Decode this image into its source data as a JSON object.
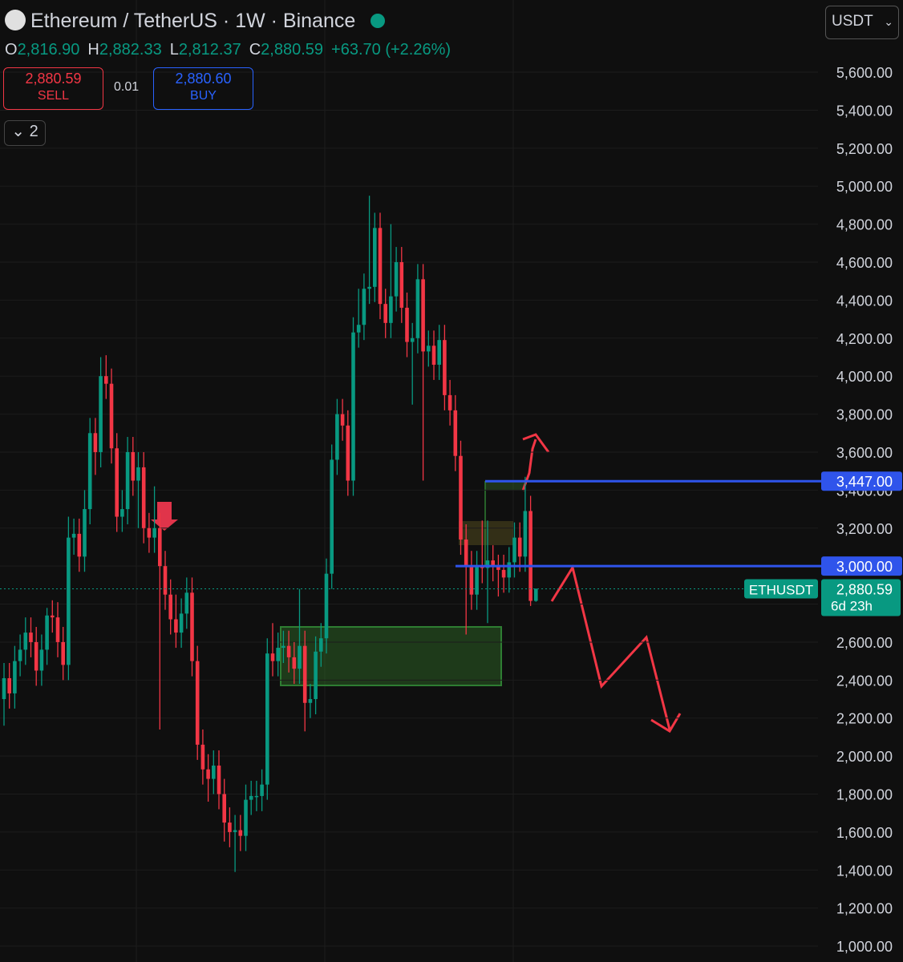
{
  "header": {
    "title": "Ethereum / TetherUS · 1W · Binance",
    "currency": "USDT",
    "ohlc": [
      {
        "key": "O",
        "value": "2,816.90"
      },
      {
        "key": "H",
        "value": "2,882.33"
      },
      {
        "key": "L",
        "value": "2,812.37"
      },
      {
        "key": "C",
        "value": "2,880.59"
      }
    ],
    "change": "+63.70 (+2.26%)",
    "sell": {
      "price": "2,880.59",
      "label": "SELL"
    },
    "spread": "0.01",
    "buy": {
      "price": "2,880.60",
      "label": "BUY"
    },
    "indicators": "2"
  },
  "chart_data": {
    "type": "candlestick",
    "up_color": "#089981",
    "down_color": "#f23645",
    "ylim": [
      916,
      5980
    ],
    "yticks": [
      {
        "value": 1000,
        "label": "1,000.00"
      },
      {
        "value": 1200,
        "label": "1,200.00"
      },
      {
        "value": 1400,
        "label": "1,400.00"
      },
      {
        "value": 1600,
        "label": "1,600.00"
      },
      {
        "value": 1800,
        "label": "1,800.00"
      },
      {
        "value": 2000,
        "label": "2,000.00"
      },
      {
        "value": 2200,
        "label": "2,200.00"
      },
      {
        "value": 2400,
        "label": "2,400.00"
      },
      {
        "value": 2600,
        "label": "2,600.00"
      },
      {
        "value": 2800,
        "label": "2,800.00"
      },
      {
        "value": 3000,
        "label": "3,000.00"
      },
      {
        "value": 3200,
        "label": "3,200.00"
      },
      {
        "value": 3400,
        "label": "3,400.00"
      },
      {
        "value": 3600,
        "label": "3,600.00"
      },
      {
        "value": 3800,
        "label": "3,800.00"
      },
      {
        "value": 4000,
        "label": "4,000.00"
      },
      {
        "value": 4200,
        "label": "4,200.00"
      },
      {
        "value": 4400,
        "label": "4,400.00"
      },
      {
        "value": 4600,
        "label": "4,600.00"
      },
      {
        "value": 4800,
        "label": "4,800.00"
      },
      {
        "value": 5000,
        "label": "5,000.00"
      },
      {
        "value": 5200,
        "label": "5,200.00"
      },
      {
        "value": 5400,
        "label": "5,400.00"
      },
      {
        "value": 5600,
        "label": "5,600.00"
      }
    ],
    "grid": true,
    "open": [
      2300,
      2410,
      2330,
      2500,
      2560,
      2650,
      2600,
      2450,
      2560,
      2740,
      2730,
      2600,
      2480,
      3150,
      3170,
      3050,
      3300,
      3700,
      3600,
      4000,
      3960,
      3620,
      3260,
      3300,
      3600,
      3450,
      3520,
      3200,
      3150,
      3200,
      3000,
      2850,
      2720,
      2650,
      2750,
      2860,
      2500,
      2060,
      1930,
      1880,
      1950,
      1800,
      1650,
      1600,
      1610,
      1580,
      1770,
      1790,
      1790,
      1850,
      2540,
      2500,
      2570,
      2580,
      2520,
      2460,
      2580,
      2280,
      2300,
      2550,
      2620,
      2960,
      3560,
      3800,
      3740,
      3450,
      4230,
      4270,
      4460,
      4470,
      4780,
      4380,
      4280,
      4420,
      4600,
      4360,
      4180,
      4200,
      4510,
      4130,
      4160,
      4060,
      4190,
      3900,
      3820,
      3580,
      3140,
      3000,
      2850,
      3000,
      2990,
      3030,
      3000,
      2980,
      2940,
      3020,
      3150,
      3050,
      3290,
      2816.9
    ],
    "high": [
      2490,
      2490,
      2580,
      2640,
      2730,
      2730,
      2680,
      2640,
      2780,
      2820,
      2810,
      2680,
      3260,
      3250,
      3250,
      3400,
      3780,
      3780,
      4100,
      4110,
      4040,
      3700,
      3400,
      3680,
      3680,
      3600,
      3600,
      3280,
      3420,
      3280,
      3080,
      2930,
      2850,
      2830,
      2940,
      2940,
      2580,
      2140,
      2010,
      2030,
      2030,
      1880,
      1730,
      1690,
      1690,
      1850,
      1870,
      1870,
      1930,
      2620,
      2700,
      2650,
      2660,
      2660,
      2600,
      2880,
      2660,
      2380,
      2630,
      2700,
      3040,
      3640,
      3880,
      3880,
      3820,
      4310,
      4460,
      4540,
      4950,
      4860,
      4860,
      4460,
      4800,
      4680,
      4680,
      4440,
      4280,
      4590,
      4590,
      4240,
      4240,
      4270,
      4270,
      3980,
      3900,
      3660,
      3220,
      3080,
      3080,
      3240,
      3240,
      3110,
      3060,
      3060,
      3100,
      3230,
      3230,
      3470,
      3370,
      2882.33
    ],
    "low": [
      2160,
      2250,
      2250,
      2420,
      2480,
      2520,
      2370,
      2370,
      2480,
      2650,
      2520,
      2400,
      2400,
      3060,
      2970,
      2970,
      3220,
      3480,
      3520,
      3880,
      3540,
      3180,
      3180,
      3220,
      3370,
      3200,
      3120,
      3070,
      3070,
      2140,
      2770,
      2640,
      2570,
      2570,
      2670,
      2420,
      1980,
      1850,
      1760,
      1800,
      1720,
      1550,
      1520,
      1390,
      1500,
      1500,
      1690,
      1710,
      1710,
      1770,
      2420,
      2420,
      2490,
      2440,
      2380,
      2380,
      2130,
      2200,
      2220,
      2470,
      2540,
      2880,
      3480,
      3660,
      3370,
      3370,
      4150,
      4190,
      4380,
      4390,
      4300,
      4200,
      4200,
      4340,
      4280,
      4100,
      3850,
      4120,
      3450,
      4050,
      3980,
      3980,
      3820,
      3740,
      3500,
      3060,
      2640,
      2770,
      2770,
      2910,
      2700,
      2920,
      2840,
      2860,
      2860,
      2940,
      2970,
      2970,
      2790,
      2812.37
    ],
    "close": [
      2410,
      2330,
      2500,
      2560,
      2650,
      2600,
      2450,
      2560,
      2740,
      2730,
      2600,
      2480,
      3150,
      3170,
      3050,
      3300,
      3700,
      3600,
      4000,
      3960,
      3620,
      3260,
      3300,
      3600,
      3450,
      3520,
      3200,
      3150,
      3200,
      3000,
      2850,
      2720,
      2650,
      2750,
      2860,
      2500,
      2060,
      1930,
      1880,
      1950,
      1800,
      1650,
      1600,
      1610,
      1580,
      1770,
      1790,
      1790,
      1850,
      2540,
      2500,
      2570,
      2580,
      2520,
      2460,
      2580,
      2280,
      2300,
      2550,
      2620,
      2960,
      3560,
      3800,
      3740,
      3450,
      4230,
      4270,
      4460,
      4470,
      4780,
      4380,
      4280,
      4420,
      4600,
      4360,
      4180,
      4200,
      4510,
      4130,
      4160,
      4060,
      4190,
      3900,
      3820,
      3580,
      3140,
      3000,
      2850,
      3000,
      2990,
      3030,
      3000,
      2980,
      2940,
      3020,
      3150,
      3050,
      3290,
      2816.9,
      2880.59
    ],
    "price_lines": [
      {
        "value": 3447,
        "label": "3,447.00",
        "color": "#2f54eb"
      },
      {
        "value": 3000,
        "label": "3,000.00",
        "color": "#2f54eb"
      }
    ],
    "last_price": {
      "value": 2880.59,
      "label": "2,880.59",
      "symbol": "ETHUSDT",
      "countdown": "6d 23h",
      "color": "#089981"
    }
  }
}
